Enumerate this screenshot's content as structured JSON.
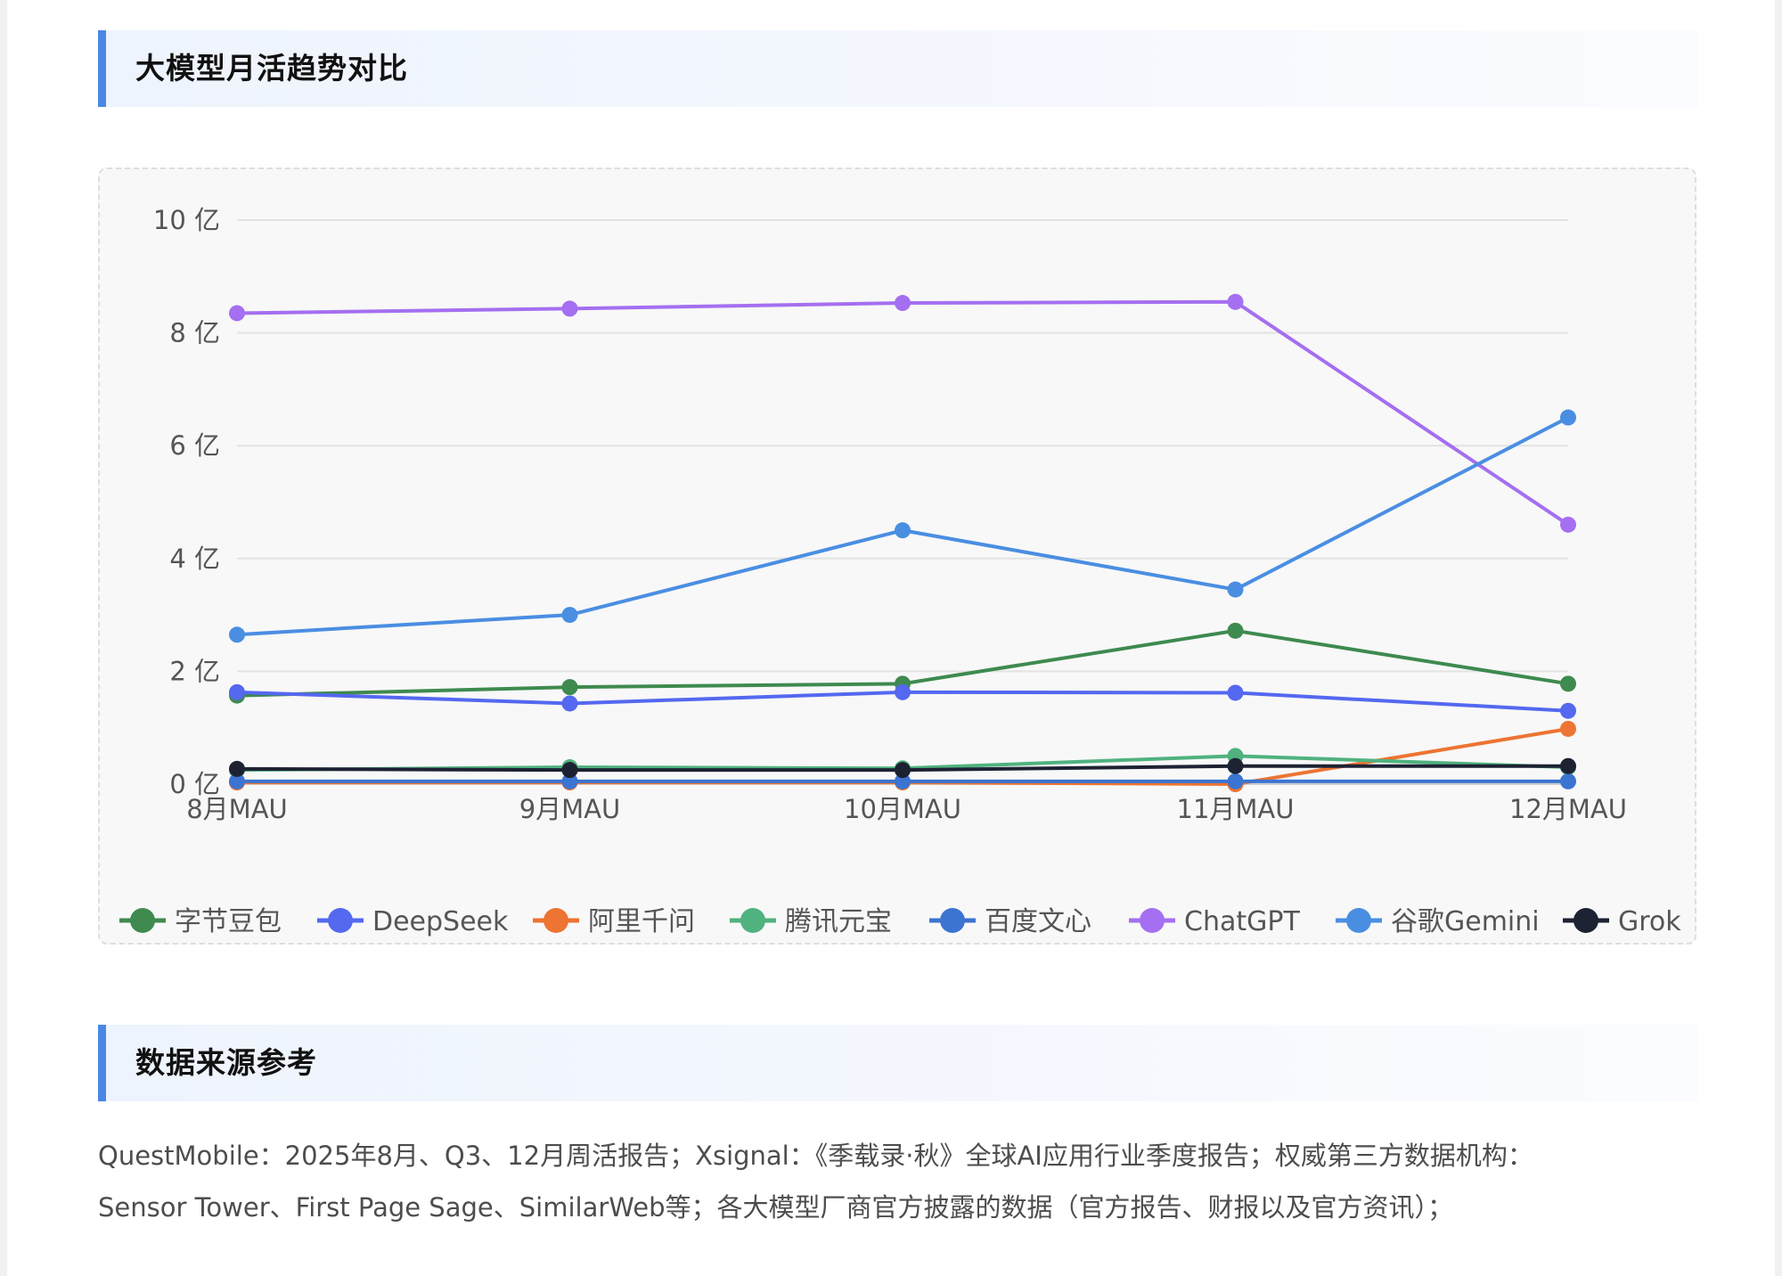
{
  "section1": {
    "title": "大模型月活趋势对比"
  },
  "section2": {
    "title": "数据来源参考"
  },
  "sources": {
    "line1": "QuestMobile：2025年8月、Q3、12月周活报告；Xsignal：《季载录·秋》全球AI应用行业季度报告；权威第三方数据机构：",
    "line2": "Sensor Tower、First Page Sage、SimilarWeb等；各大模型厂商官方披露的数据（官方报告、财报以及官方资讯）；"
  },
  "chart_data": {
    "type": "line",
    "categories": [
      "8月MAU",
      "9月MAU",
      "10月MAU",
      "11月MAU",
      "12月MAU"
    ],
    "ylim": [
      0,
      10
    ],
    "yticks": [
      0,
      2,
      4,
      6,
      8,
      10
    ],
    "yunit": " 亿",
    "grid": true,
    "legend_position": "bottom",
    "series": [
      {
        "name": "字节豆包",
        "color": "#3e8a4f",
        "values": [
          1.57,
          1.72,
          1.78,
          2.72,
          1.78
        ]
      },
      {
        "name": "DeepSeek",
        "color": "#5468f0",
        "values": [
          1.63,
          1.43,
          1.63,
          1.62,
          1.3
        ]
      },
      {
        "name": "阿里千问",
        "color": "#ed7433",
        "values": [
          0.03,
          0.03,
          0.03,
          0.0,
          0.98
        ]
      },
      {
        "name": "腾讯元宝",
        "color": "#50b27f",
        "values": [
          0.25,
          0.3,
          0.28,
          0.5,
          0.3
        ]
      },
      {
        "name": "百度文心",
        "color": "#3b74d1",
        "values": [
          0.05,
          0.05,
          0.05,
          0.05,
          0.05
        ]
      },
      {
        "name": "ChatGPT",
        "color": "#a46ff0",
        "values": [
          8.35,
          8.43,
          8.53,
          8.55,
          4.6
        ]
      },
      {
        "name": "谷歌Gemini",
        "color": "#4a8ee2",
        "values": [
          2.65,
          3.0,
          4.5,
          3.45,
          6.5
        ]
      },
      {
        "name": "Grok",
        "color": "#1d2233",
        "values": [
          0.27,
          0.25,
          0.25,
          0.32,
          0.32
        ]
      }
    ]
  }
}
